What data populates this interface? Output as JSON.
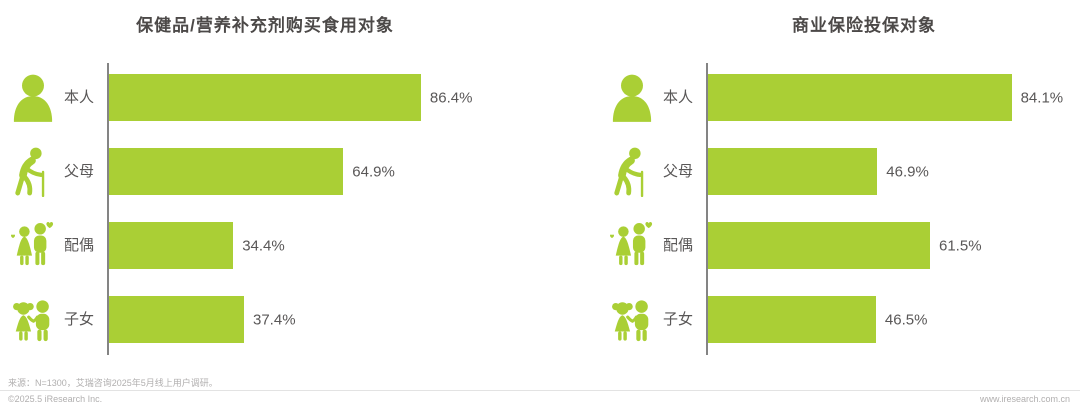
{
  "colors": {
    "bar_green": "#aacf35",
    "title_gray": "#4c4948",
    "label_gray": "#595757",
    "axis_gray": "#848484",
    "footer_gray": "#b1afaf"
  },
  "footer": {
    "source_note": "来源：N=1300，艾瑞咨询2025年5月线上用户调研。",
    "copyright": "©2025.5 iResearch Inc.",
    "website": "www.iresearch.com.cn"
  },
  "chart_data": [
    {
      "type": "bar",
      "orientation": "horizontal",
      "title": "保健品/营养补充剂购买食用对象",
      "categories": [
        "本人",
        "父母",
        "配偶",
        "子女"
      ],
      "values": [
        86.4,
        64.9,
        34.4,
        37.4
      ],
      "value_labels": [
        "86.4%",
        "64.9%",
        "34.4%",
        "37.4%"
      ],
      "unit": "%",
      "xlim": [
        0,
        100
      ],
      "grid": false,
      "legend": "none",
      "icons": [
        "self-person-icon",
        "elder-with-cane-icon",
        "couple-icon",
        "children-icon"
      ]
    },
    {
      "type": "bar",
      "orientation": "horizontal",
      "title": "商业保险投保对象",
      "categories": [
        "本人",
        "父母",
        "配偶",
        "子女"
      ],
      "values": [
        84.1,
        46.9,
        61.5,
        46.5
      ],
      "value_labels": [
        "84.1%",
        "46.9%",
        "61.5%",
        "46.5%"
      ],
      "unit": "%",
      "xlim": [
        0,
        100
      ],
      "grid": false,
      "legend": "none",
      "icons": [
        "self-person-icon",
        "elder-with-cane-icon",
        "couple-icon",
        "children-icon"
      ]
    }
  ]
}
